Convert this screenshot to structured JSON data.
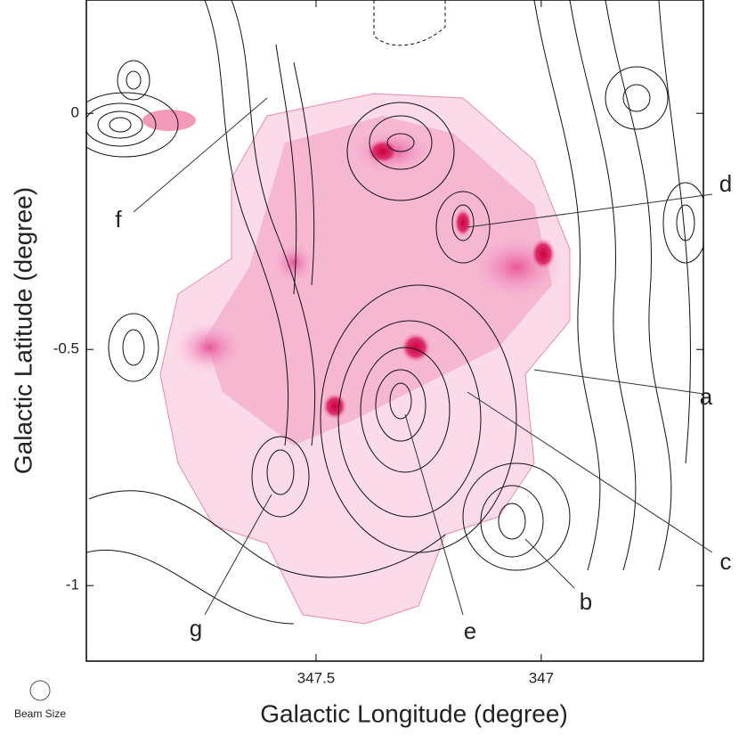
{
  "chart_data": {
    "type": "contour",
    "x_label": "Galactic Longitude (degree)",
    "y_label": "Galactic Latitude (degree)",
    "xlim": [
      348.01,
      346.64
    ],
    "xticks": [
      347.5,
      347
    ],
    "ylim": [
      -1.16,
      0.24
    ],
    "yticks": [
      0,
      -0.5,
      -1
    ],
    "annotations": [
      "a",
      "b",
      "c",
      "d",
      "e",
      "f",
      "g"
    ],
    "beam_label": "Beam Size"
  }
}
